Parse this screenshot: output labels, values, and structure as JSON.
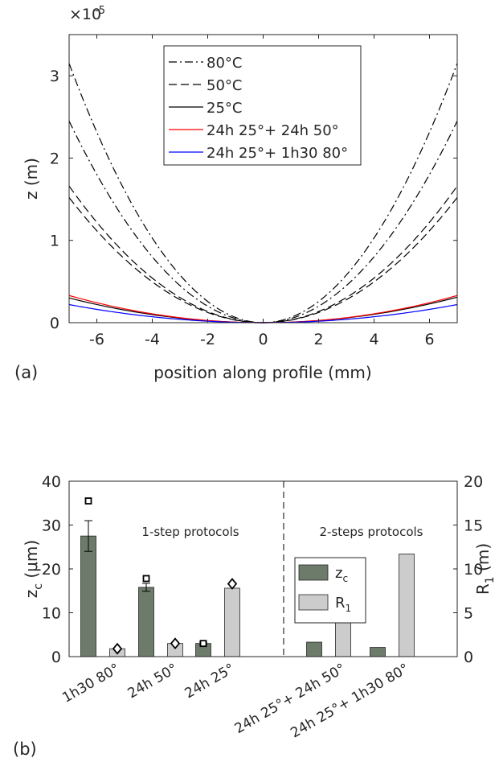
{
  "panel_a": {
    "label": "(a)",
    "exponent_base": "×10",
    "exponent_power": "-5",
    "chart_data": {
      "type": "line",
      "xlabel": "position along profile (mm)",
      "ylabel": "z (m)",
      "xlim": [
        -7,
        7
      ],
      "ylim": [
        0,
        3.5e-05
      ],
      "xticks": [
        -6,
        -4,
        -2,
        0,
        2,
        4,
        6
      ],
      "xtick_labels": [
        "-6",
        "-4",
        "-2",
        "0",
        "2",
        "4",
        "6"
      ],
      "yticks": [
        0,
        1e-05,
        2e-05,
        3e-05
      ],
      "ytick_labels": [
        "0",
        "1",
        "2",
        "3"
      ],
      "grid": false,
      "legend_position": "top-center",
      "series": [
        {
          "name": "80°C",
          "color": "#000000",
          "dash": "dashdot",
          "shape": "parabola",
          "edge_values": [
            3.15e-05,
            3.15e-05
          ]
        },
        {
          "name": "",
          "color": "#000000",
          "dash": "dashdot",
          "shape": "parabola",
          "edge_values": [
            2.45e-05,
            2.45e-05
          ]
        },
        {
          "name": "50°C",
          "color": "#000000",
          "dash": "dashed",
          "shape": "parabola",
          "edge_values": [
            1.66e-05,
            1.66e-05
          ]
        },
        {
          "name": "",
          "color": "#000000",
          "dash": "dashed",
          "shape": "parabola",
          "edge_values": [
            1.52e-05,
            1.52e-05
          ]
        },
        {
          "name": "25°C",
          "color": "#000000",
          "dash": "solid",
          "shape": "parabola",
          "edge_values": [
            3e-06,
            3.1e-06
          ]
        },
        {
          "name": "24h 25°+ 24h 50°",
          "color": "#ff0000",
          "dash": "solid",
          "shape": "parabola",
          "edge_values": [
            3.3e-06,
            3.3e-06
          ]
        },
        {
          "name": "24h 25°+ 1h30 80°",
          "color": "#0000ff",
          "dash": "solid",
          "shape": "parabola",
          "edge_values": [
            2.2e-06,
            2.2e-06
          ]
        }
      ]
    }
  },
  "panel_b": {
    "label": "(b)",
    "chart_data": {
      "type": "bar",
      "categories": [
        "1h30 80°",
        "24h 50°",
        "24h 25°",
        "24h 25°+ 24h 50°",
        "24h 25°+ 1h30 80°"
      ],
      "ylabel_left": "z",
      "ylabel_left_sub": "c",
      "ylabel_left_unit": " (μm)",
      "ylabel_right": "R",
      "ylabel_right_sub": "1",
      "ylabel_right_unit": " (m)",
      "ylim_left": [
        0,
        40
      ],
      "ylim_right": [
        0,
        20
      ],
      "yticks_left": [
        "0",
        "10",
        "20",
        "30",
        "40"
      ],
      "yticks_right": [
        "0",
        "5",
        "10",
        "15",
        "20"
      ],
      "annotations": [
        "1-step protocols",
        "2-steps protocols"
      ],
      "legend_position": "upper-right",
      "series": [
        {
          "name": "z",
          "sub": "c",
          "axis": "left",
          "color": "#6d7b6a",
          "values": [
            27.5,
            15.8,
            3.0,
            3.3,
            2.1
          ],
          "errors": [
            3.5,
            0.9,
            0.3,
            null,
            null
          ]
        },
        {
          "name": "R",
          "sub": "1",
          "axis": "right",
          "color": "#cccccc",
          "values": [
            0.9,
            1.5,
            7.8,
            7.4,
            11.7
          ]
        }
      ],
      "markers": [
        {
          "category": "1h30 80°",
          "symbol": "square",
          "axis": "left",
          "value": 35.5
        },
        {
          "category": "1h30 80°",
          "symbol": "diamond",
          "axis": "right",
          "value": 0.9
        },
        {
          "category": "24h 50°",
          "symbol": "square",
          "axis": "left",
          "value": 17.8
        },
        {
          "category": "24h 50°",
          "symbol": "diamond",
          "axis": "right",
          "value": 1.5
        },
        {
          "category": "24h 25°",
          "symbol": "square",
          "axis": "left",
          "value": 3.0
        },
        {
          "category": "24h 25°",
          "symbol": "diamond",
          "axis": "right",
          "value": 8.3
        }
      ]
    }
  }
}
